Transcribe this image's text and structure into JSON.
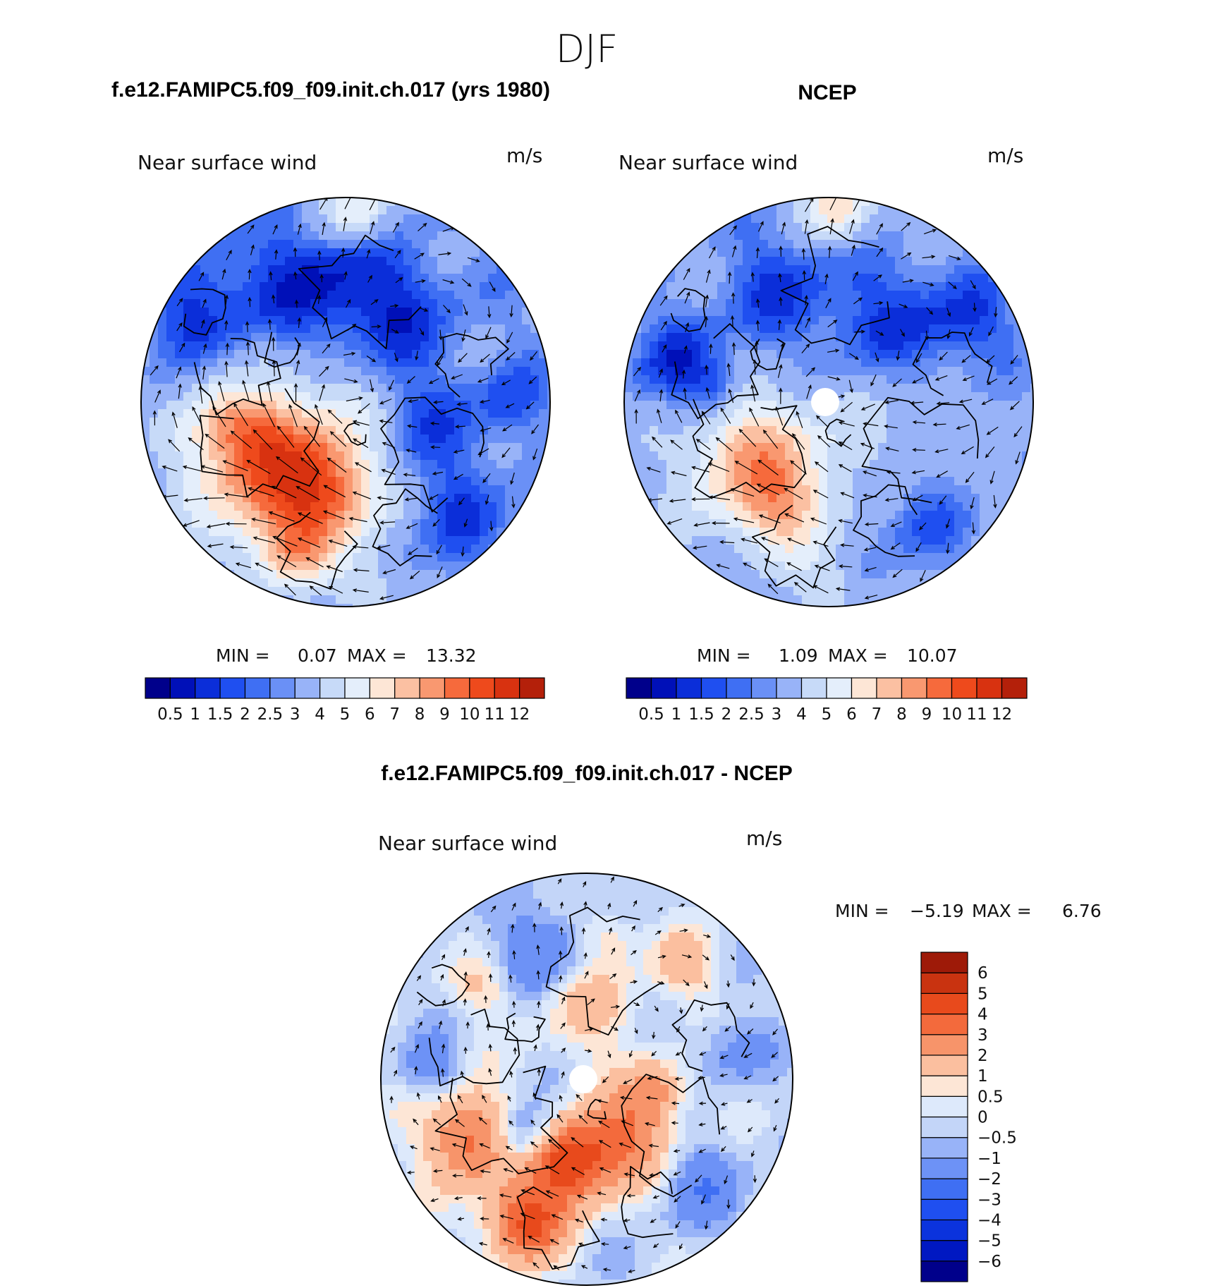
{
  "page": {
    "season_title": "DJF"
  },
  "colors": {
    "abs_scale": [
      "#00008b",
      "#0010b8",
      "#0b2ed9",
      "#1f4ff0",
      "#3f6ff3",
      "#6a90f6",
      "#98b3f8",
      "#c7daf8",
      "#e4eefb",
      "#fde6d6",
      "#fbc0a2",
      "#f99870",
      "#f66a3c",
      "#ee4a1c",
      "#d83210",
      "#b4200a",
      "#7f0000"
    ],
    "diff_scale": [
      "#00008b",
      "#0018c2",
      "#0b33dd",
      "#1f4ff0",
      "#3f6ff3",
      "#6d92f6",
      "#98b3f8",
      "#c3d5f8",
      "#dde9fb",
      "#fde6d6",
      "#fbbf9f",
      "#f7946a",
      "#f36a3c",
      "#e84a1c",
      "#c93310",
      "#9e1a08",
      "#7f0000"
    ],
    "vector": "#000000",
    "coast": "#000000"
  },
  "chart_data": [
    {
      "type": "polar-contour-vector",
      "id": "model",
      "title": "f.e12.FAMIPC5.f09_f09.init.ch.017 (yrs 1980)",
      "variable": "Near surface wind",
      "units": "m/s",
      "min_label": "MIN =",
      "min_value": "0.07",
      "max_label": "MAX =",
      "max_value": "13.32",
      "levels": [
        0.5,
        1,
        1.5,
        2,
        2.5,
        3,
        4,
        5,
        6,
        7,
        8,
        9,
        10,
        11,
        12
      ],
      "tick_labels": [
        "0.5",
        "1",
        "1.5",
        "2",
        "2.5",
        "3",
        "4",
        "5",
        "6",
        "7",
        "8",
        "9",
        "10",
        "11",
        "12"
      ],
      "colorbar": "horizontal"
    },
    {
      "type": "polar-contour-vector",
      "id": "obs",
      "title": "NCEP",
      "variable": "Near surface wind",
      "units": "m/s",
      "min_label": "MIN =",
      "min_value": "1.09",
      "max_label": "MAX =",
      "max_value": "10.07",
      "levels": [
        0.5,
        1,
        1.5,
        2,
        2.5,
        3,
        4,
        5,
        6,
        7,
        8,
        9,
        10,
        11,
        12
      ],
      "tick_labels": [
        "0.5",
        "1",
        "1.5",
        "2",
        "2.5",
        "3",
        "4",
        "5",
        "6",
        "7",
        "8",
        "9",
        "10",
        "11",
        "12"
      ],
      "colorbar": "horizontal"
    },
    {
      "type": "polar-contour-vector",
      "id": "diff",
      "title": "f.e12.FAMIPC5.f09_f09.init.ch.017 - NCEP",
      "variable": "Near surface wind",
      "units": "m/s",
      "min_label": "MIN =",
      "min_value": "−5.19",
      "max_label": "MAX =",
      "max_value": "6.76",
      "levels": [
        -6,
        -5,
        -4,
        -3,
        -2,
        -1,
        -0.5,
        0,
        0.5,
        1,
        2,
        3,
        4,
        5,
        6
      ],
      "tick_labels": [
        "−6",
        "−5",
        "−4",
        "−3",
        "−2",
        "−1",
        "−0.5",
        "0",
        "0.5",
        "1",
        "2",
        "3",
        "4",
        "5",
        "6"
      ],
      "colorbar": "vertical"
    }
  ]
}
